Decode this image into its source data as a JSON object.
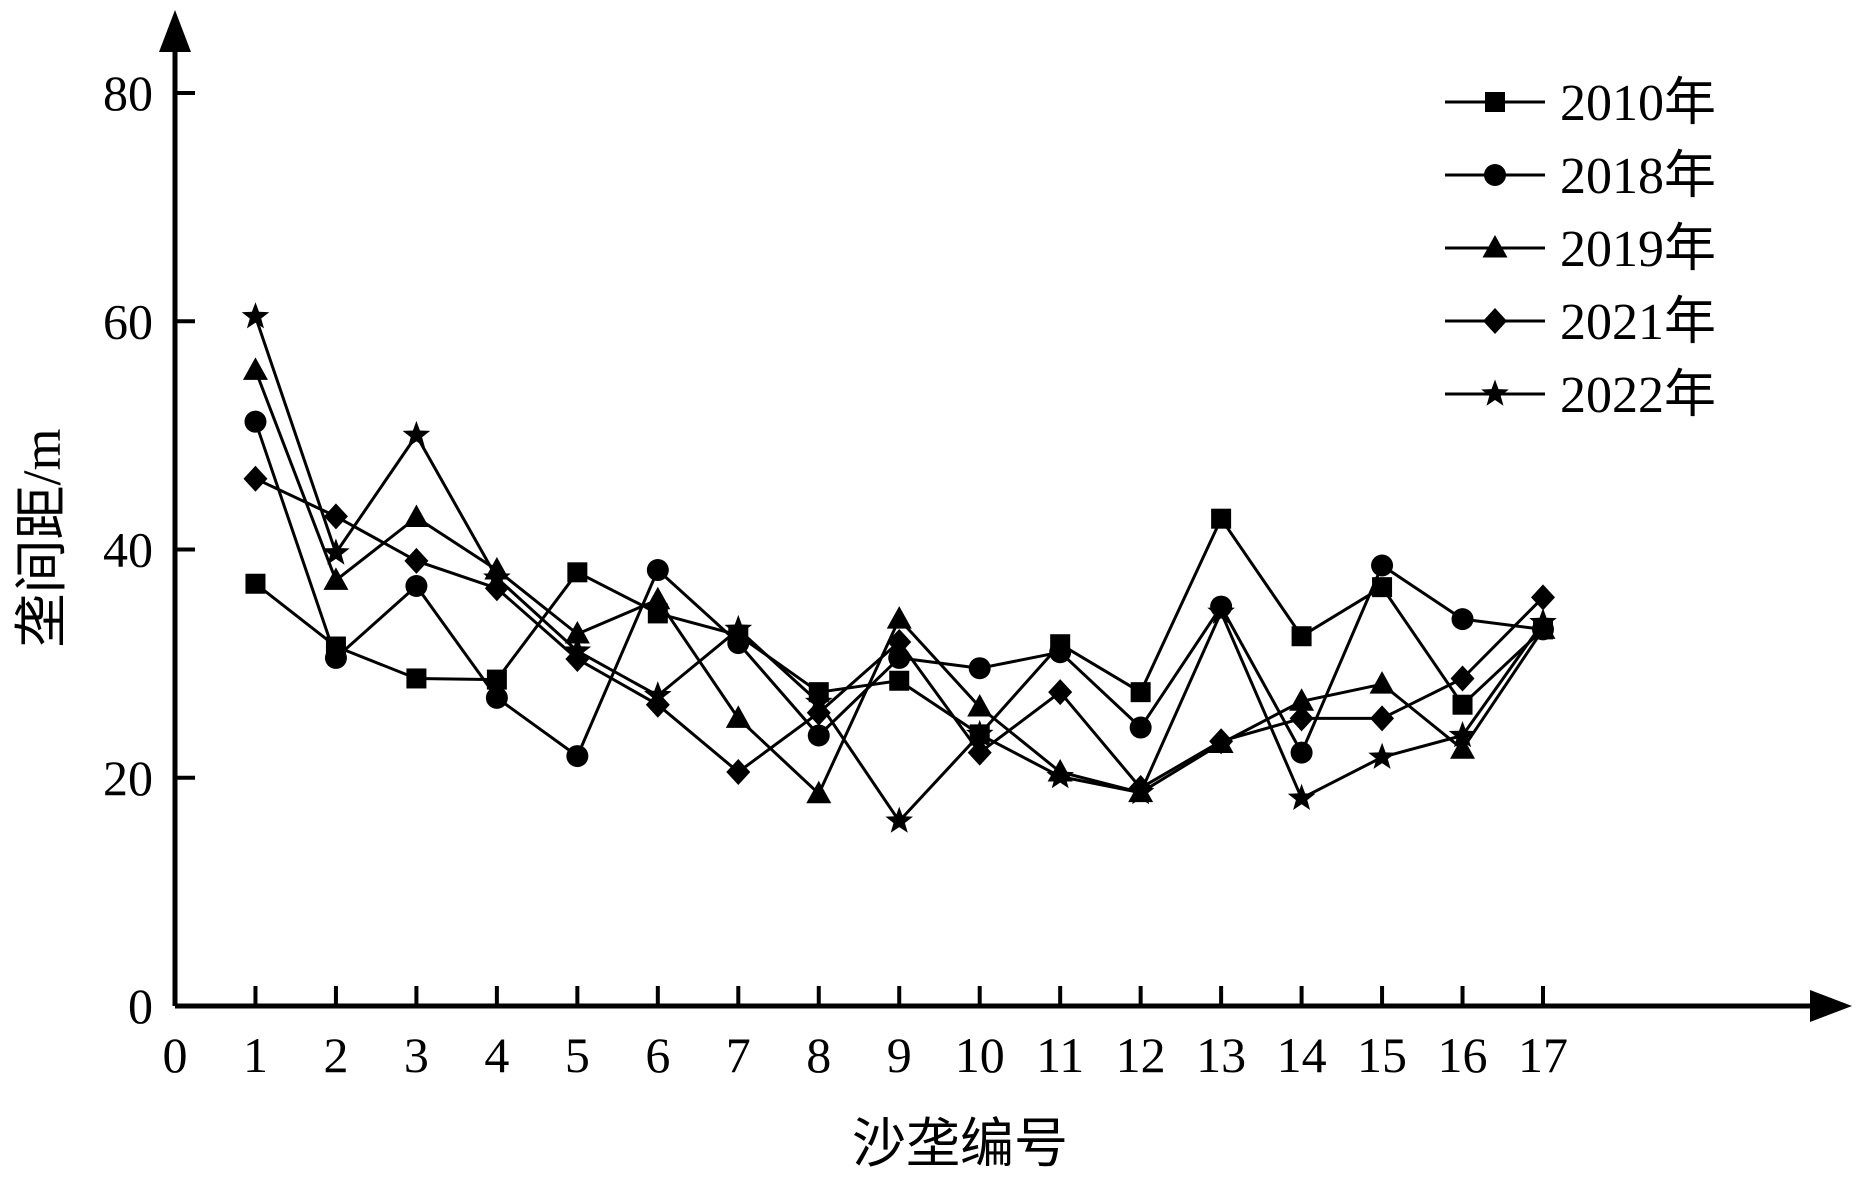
{
  "chart_data": {
    "type": "line",
    "title": "",
    "xlabel": "沙垄编号",
    "ylabel": "垄间距/m",
    "xlim": [
      0,
      17
    ],
    "ylim": [
      0,
      80
    ],
    "x_ticks": [
      "0",
      "1",
      "2",
      "3",
      "4",
      "5",
      "6",
      "7",
      "8",
      "9",
      "10",
      "11",
      "12",
      "13",
      "14",
      "15",
      "16",
      "17"
    ],
    "y_ticks": [
      "0",
      "20",
      "40",
      "60",
      "80"
    ],
    "x": [
      1,
      2,
      3,
      4,
      5,
      6,
      7,
      8,
      9,
      10,
      11,
      12,
      13,
      14,
      15,
      16,
      17
    ],
    "grid": false,
    "legend_position": "top-right",
    "series": [
      {
        "name": "2010年",
        "marker": "square",
        "values": [
          37,
          31.5,
          28.7,
          28.6,
          38,
          34.4,
          32.5,
          27.5,
          28.5,
          23.8,
          31.7,
          27.5,
          42.7,
          32.4,
          36.7,
          26.4,
          33
        ]
      },
      {
        "name": "2018年",
        "marker": "circle",
        "values": [
          51.2,
          30.5,
          36.8,
          27,
          21.9,
          38.2,
          31.8,
          23.7,
          30.5,
          29.6,
          31,
          24.4,
          35,
          22.2,
          38.6,
          33.9,
          33
        ]
      },
      {
        "name": "2019年",
        "marker": "triangle",
        "values": [
          55.7,
          37.3,
          42.8,
          38.2,
          32.6,
          35.6,
          25.2,
          18.6,
          33.9,
          26.2,
          20.5,
          18.7,
          23,
          26.7,
          28.2,
          22.5,
          33
        ]
      },
      {
        "name": "2021年",
        "marker": "diamond",
        "values": [
          46.2,
          42.9,
          39,
          36.6,
          30.4,
          26.4,
          20.5,
          25.7,
          31.9,
          22.2,
          27.5,
          19.1,
          23.2,
          25.2,
          25.2,
          28.7,
          35.8
        ]
      },
      {
        "name": "2022年",
        "marker": "star",
        "values": [
          60.4,
          39.7,
          50,
          37.5,
          31.1,
          27.2,
          33,
          26.6,
          16.2,
          23.8,
          20.1,
          18.7,
          34.5,
          18.2,
          21.8,
          23.7,
          33.6
        ]
      }
    ]
  }
}
